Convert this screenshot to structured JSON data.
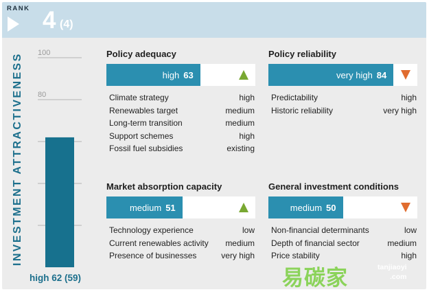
{
  "header": {
    "rank_label": "RANK",
    "rank": "4",
    "previous_rank": "(4)"
  },
  "attractiveness": {
    "title": "INVESTMENT ATTRACTIVENESS",
    "bar_label": "high 62 (59)"
  },
  "chart_data": {
    "type": "bar",
    "title": "INVESTMENT ATTRACTIVENESS",
    "categories": [
      ""
    ],
    "values": [
      62
    ],
    "previous_value": 59,
    "rating": "high",
    "ylim": [
      0,
      100
    ],
    "yticks": [
      20,
      40,
      60,
      80,
      100
    ],
    "ytick_labels": {
      "80": "80",
      "100": "100"
    },
    "bar_color": "#17718e",
    "grid_color": "#b5b5b5"
  },
  "panels": {
    "policy_adequacy": {
      "title": "Policy adequacy",
      "rating": "high",
      "score": "63",
      "score_value": 63,
      "trend": "up",
      "rows": [
        {
          "label": "Climate strategy",
          "value": "high"
        },
        {
          "label": "Renewables target",
          "value": "medium"
        },
        {
          "label": "Long-term transition",
          "value": "medium"
        },
        {
          "label": "Support schemes",
          "value": "high"
        },
        {
          "label": "Fossil fuel subsidies",
          "value": "existing"
        }
      ]
    },
    "policy_reliability": {
      "title": "Policy reliability",
      "rating": "very high",
      "score": "84",
      "score_value": 84,
      "trend": "down",
      "rows": [
        {
          "label": "Predictability",
          "value": "high"
        },
        {
          "label": "Historic reliability",
          "value": "very high"
        }
      ]
    },
    "market_absorption": {
      "title": "Market absorption capacity",
      "rating": "medium",
      "score": "51",
      "score_value": 51,
      "trend": "up",
      "rows": [
        {
          "label": "Technology experience",
          "value": "low"
        },
        {
          "label": "Current renewables activity",
          "value": "medium"
        },
        {
          "label": "Presence of businesses",
          "value": "very high"
        }
      ]
    },
    "general_investment": {
      "title": "General investment conditions",
      "rating": "medium",
      "score": "50",
      "score_value": 50,
      "trend": "down",
      "rows": [
        {
          "label": "Non-financial determinants",
          "value": "low"
        },
        {
          "label": "Depth of financial sector",
          "value": "medium"
        },
        {
          "label": "Price stability",
          "value": "high"
        }
      ]
    }
  },
  "watermark": {
    "chinese": "易碳家",
    "url_top": "tanjiaoyi",
    "url_bottom": ".com"
  },
  "colors": {
    "accent": "#2b8fb0",
    "dark_accent": "#17718e",
    "header_bg": "#c8dde9",
    "panel_bg": "#ececec",
    "trend_up": "#79a832",
    "trend_down": "#e06c2f"
  }
}
